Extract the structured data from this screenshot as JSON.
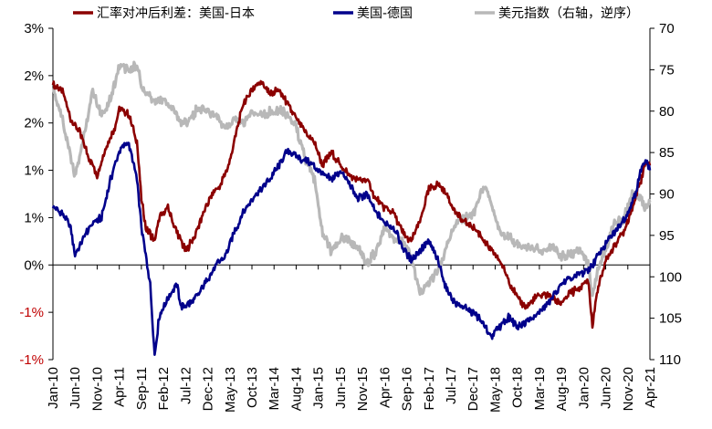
{
  "chart_data": {
    "type": "line",
    "legend_position": "top",
    "grid": false,
    "series": [
      {
        "name": "汇率对冲后利差：美国-日本",
        "color": "#8b0000",
        "axis": "left",
        "points": [
          [
            "2010-01",
            1.9
          ],
          [
            "2010-03",
            1.85
          ],
          [
            "2010-05",
            1.55
          ],
          [
            "2010-07",
            1.4
          ],
          [
            "2010-09",
            1.15
          ],
          [
            "2010-11",
            0.95
          ],
          [
            "2011-01",
            1.25
          ],
          [
            "2011-03",
            1.45
          ],
          [
            "2011-04",
            1.65
          ],
          [
            "2011-06",
            1.6
          ],
          [
            "2011-08",
            1.3
          ],
          [
            "2011-09",
            0.7
          ],
          [
            "2011-10",
            0.4
          ],
          [
            "2011-12",
            0.25
          ],
          [
            "2012-01",
            0.5
          ],
          [
            "2012-03",
            0.6
          ],
          [
            "2012-05",
            0.35
          ],
          [
            "2012-07",
            0.15
          ],
          [
            "2012-09",
            0.3
          ],
          [
            "2012-11",
            0.55
          ],
          [
            "2013-01",
            0.75
          ],
          [
            "2013-03",
            0.85
          ],
          [
            "2013-05",
            1.1
          ],
          [
            "2013-07",
            1.5
          ],
          [
            "2013-08",
            1.7
          ],
          [
            "2013-10",
            1.85
          ],
          [
            "2013-12",
            1.95
          ],
          [
            "2014-02",
            1.8
          ],
          [
            "2014-04",
            1.85
          ],
          [
            "2014-06",
            1.7
          ],
          [
            "2014-08",
            1.55
          ],
          [
            "2014-10",
            1.4
          ],
          [
            "2014-12",
            1.3
          ],
          [
            "2015-02",
            1.05
          ],
          [
            "2015-04",
            1.2
          ],
          [
            "2015-06",
            1.05
          ],
          [
            "2015-08",
            0.95
          ],
          [
            "2015-10",
            0.9
          ],
          [
            "2015-12",
            0.9
          ],
          [
            "2016-02",
            0.7
          ],
          [
            "2016-04",
            0.6
          ],
          [
            "2016-06",
            0.55
          ],
          [
            "2016-08",
            0.35
          ],
          [
            "2016-10",
            0.25
          ],
          [
            "2016-12",
            0.45
          ],
          [
            "2017-02",
            0.8
          ],
          [
            "2017-04",
            0.85
          ],
          [
            "2017-06",
            0.75
          ],
          [
            "2017-08",
            0.55
          ],
          [
            "2017-10",
            0.45
          ],
          [
            "2017-12",
            0.4
          ],
          [
            "2018-02",
            0.3
          ],
          [
            "2018-04",
            0.15
          ],
          [
            "2018-06",
            0.05
          ],
          [
            "2018-08",
            -0.15
          ],
          [
            "2018-10",
            -0.35
          ],
          [
            "2018-12",
            -0.45
          ],
          [
            "2019-02",
            -0.35
          ],
          [
            "2019-04",
            -0.3
          ],
          [
            "2019-06",
            -0.35
          ],
          [
            "2019-08",
            -0.4
          ],
          [
            "2019-10",
            -0.3
          ],
          [
            "2019-12",
            -0.25
          ],
          [
            "2020-02",
            -0.15
          ],
          [
            "2020-03",
            -0.65
          ],
          [
            "2020-04",
            -0.3
          ],
          [
            "2020-06",
            0.05
          ],
          [
            "2020-08",
            0.2
          ],
          [
            "2020-10",
            0.35
          ],
          [
            "2020-12",
            0.6
          ],
          [
            "2021-02",
            0.9
          ],
          [
            "2021-03",
            1.08
          ],
          [
            "2021-04",
            1.05
          ]
        ]
      },
      {
        "name": "美国-德国",
        "color": "#00008b",
        "axis": "left",
        "points": [
          [
            "2010-01",
            0.6
          ],
          [
            "2010-03",
            0.55
          ],
          [
            "2010-05",
            0.4
          ],
          [
            "2010-06",
            0.1
          ],
          [
            "2010-08",
            0.3
          ],
          [
            "2010-10",
            0.45
          ],
          [
            "2010-12",
            0.5
          ],
          [
            "2011-02",
            0.9
          ],
          [
            "2011-04",
            1.2
          ],
          [
            "2011-06",
            1.3
          ],
          [
            "2011-07",
            1.1
          ],
          [
            "2011-08",
            0.9
          ],
          [
            "2011-09",
            0.4
          ],
          [
            "2011-10",
            0.1
          ],
          [
            "2011-11",
            -0.2
          ],
          [
            "2011-12",
            -0.95
          ],
          [
            "2012-01",
            -0.55
          ],
          [
            "2012-03",
            -0.35
          ],
          [
            "2012-05",
            -0.2
          ],
          [
            "2012-06",
            -0.45
          ],
          [
            "2012-08",
            -0.4
          ],
          [
            "2012-10",
            -0.3
          ],
          [
            "2012-12",
            -0.15
          ],
          [
            "2013-02",
            0.0
          ],
          [
            "2013-04",
            0.1
          ],
          [
            "2013-06",
            0.35
          ],
          [
            "2013-08",
            0.55
          ],
          [
            "2013-10",
            0.7
          ],
          [
            "2013-12",
            0.8
          ],
          [
            "2014-02",
            0.9
          ],
          [
            "2014-04",
            1.05
          ],
          [
            "2014-06",
            1.2
          ],
          [
            "2014-08",
            1.15
          ],
          [
            "2014-10",
            1.1
          ],
          [
            "2014-12",
            1.05
          ],
          [
            "2015-02",
            0.95
          ],
          [
            "2015-04",
            0.9
          ],
          [
            "2015-06",
            1.0
          ],
          [
            "2015-08",
            0.85
          ],
          [
            "2015-10",
            0.7
          ],
          [
            "2015-12",
            0.75
          ],
          [
            "2016-02",
            0.55
          ],
          [
            "2016-04",
            0.45
          ],
          [
            "2016-06",
            0.4
          ],
          [
            "2016-08",
            0.2
          ],
          [
            "2016-10",
            0.05
          ],
          [
            "2016-12",
            0.15
          ],
          [
            "2017-02",
            0.25
          ],
          [
            "2017-04",
            0.05
          ],
          [
            "2017-06",
            -0.25
          ],
          [
            "2017-08",
            -0.4
          ],
          [
            "2017-10",
            -0.45
          ],
          [
            "2017-12",
            -0.5
          ],
          [
            "2018-02",
            -0.6
          ],
          [
            "2018-04",
            -0.75
          ],
          [
            "2018-06",
            -0.65
          ],
          [
            "2018-08",
            -0.55
          ],
          [
            "2018-10",
            -0.65
          ],
          [
            "2018-12",
            -0.6
          ],
          [
            "2019-02",
            -0.55
          ],
          [
            "2019-04",
            -0.45
          ],
          [
            "2019-06",
            -0.35
          ],
          [
            "2019-08",
            -0.2
          ],
          [
            "2019-10",
            -0.15
          ],
          [
            "2019-12",
            -0.1
          ],
          [
            "2020-02",
            -0.05
          ],
          [
            "2020-03",
            0.0
          ],
          [
            "2020-05",
            0.15
          ],
          [
            "2020-07",
            0.3
          ],
          [
            "2020-09",
            0.4
          ],
          [
            "2020-11",
            0.55
          ],
          [
            "2021-01",
            0.8
          ],
          [
            "2021-02",
            1.0
          ],
          [
            "2021-03",
            1.12
          ],
          [
            "2021-04",
            1.0
          ]
        ]
      },
      {
        "name": "美元指数（右轴，逆序）",
        "color": "#b8b8b8",
        "axis": "right",
        "points": [
          [
            "2010-01",
            77.5
          ],
          [
            "2010-03",
            80.5
          ],
          [
            "2010-05",
            85.5
          ],
          [
            "2010-06",
            88.0
          ],
          [
            "2010-08",
            83.0
          ],
          [
            "2010-10",
            77.5
          ],
          [
            "2010-12",
            80.5
          ],
          [
            "2011-02",
            78.5
          ],
          [
            "2011-04",
            74.5
          ],
          [
            "2011-06",
            74.8
          ],
          [
            "2011-08",
            74.5
          ],
          [
            "2011-09",
            77.0
          ],
          [
            "2011-11",
            78.5
          ],
          [
            "2011-12",
            79.0
          ],
          [
            "2012-02",
            78.5
          ],
          [
            "2012-04",
            79.5
          ],
          [
            "2012-06",
            81.5
          ],
          [
            "2012-08",
            81.0
          ],
          [
            "2012-10",
            79.5
          ],
          [
            "2012-12",
            80.0
          ],
          [
            "2013-02",
            80.5
          ],
          [
            "2013-04",
            82.0
          ],
          [
            "2013-06",
            81.0
          ],
          [
            "2013-08",
            81.5
          ],
          [
            "2013-10",
            80.0
          ],
          [
            "2013-12",
            80.5
          ],
          [
            "2014-02",
            80.2
          ],
          [
            "2014-04",
            79.8
          ],
          [
            "2014-06",
            80.5
          ],
          [
            "2014-08",
            82.0
          ],
          [
            "2014-10",
            85.5
          ],
          [
            "2014-12",
            88.0
          ],
          [
            "2015-02",
            94.5
          ],
          [
            "2015-04",
            97.0
          ],
          [
            "2015-06",
            95.5
          ],
          [
            "2015-08",
            95.5
          ],
          [
            "2015-10",
            96.5
          ],
          [
            "2015-12",
            98.5
          ],
          [
            "2016-02",
            97.0
          ],
          [
            "2016-04",
            94.0
          ],
          [
            "2016-06",
            95.5
          ],
          [
            "2016-08",
            95.5
          ],
          [
            "2016-10",
            97.5
          ],
          [
            "2016-12",
            102.0
          ],
          [
            "2017-02",
            100.5
          ],
          [
            "2017-04",
            99.5
          ],
          [
            "2017-06",
            96.5
          ],
          [
            "2017-08",
            93.5
          ],
          [
            "2017-10",
            93.0
          ],
          [
            "2017-12",
            92.5
          ],
          [
            "2018-02",
            89.5
          ],
          [
            "2018-03",
            89.0
          ],
          [
            "2018-04",
            91.0
          ],
          [
            "2018-06",
            94.5
          ],
          [
            "2018-08",
            95.0
          ],
          [
            "2018-10",
            96.0
          ],
          [
            "2018-12",
            96.5
          ],
          [
            "2019-02",
            96.5
          ],
          [
            "2019-04",
            97.0
          ],
          [
            "2019-06",
            96.5
          ],
          [
            "2019-08",
            97.5
          ],
          [
            "2019-10",
            97.5
          ],
          [
            "2019-12",
            96.5
          ],
          [
            "2020-02",
            98.5
          ],
          [
            "2020-03",
            102.5
          ],
          [
            "2020-04",
            99.5
          ],
          [
            "2020-06",
            96.5
          ],
          [
            "2020-08",
            93.5
          ],
          [
            "2020-10",
            93.2
          ],
          [
            "2020-12",
            90.0
          ],
          [
            "2021-02",
            90.5
          ],
          [
            "2021-03",
            92.0
          ],
          [
            "2021-04",
            91.0
          ]
        ]
      }
    ],
    "x_ticks": [
      "Jan-10",
      "Jun-10",
      "Nov-10",
      "Apr-11",
      "Sep-11",
      "Feb-12",
      "Jul-12",
      "Dec-12",
      "May-13",
      "Oct-13",
      "Mar-14",
      "Aug-14",
      "Jan-15",
      "Jun-15",
      "Nov-15",
      "Apr-16",
      "Sep-16",
      "Feb-17",
      "Jul-17",
      "Dec-17",
      "May-18",
      "Oct-18",
      "Mar-19",
      "Aug-19",
      "Jan-20",
      "Jun-20",
      "Nov-20",
      "Apr-21"
    ],
    "x_range": [
      "2010-01",
      "2021-04"
    ],
    "y_left": {
      "range": [
        -1.0,
        2.5
      ],
      "ticks": [
        {
          "value": 2.5,
          "label": "3%"
        },
        {
          "value": 2.0,
          "label": "2%"
        },
        {
          "value": 1.5,
          "label": "2%"
        },
        {
          "value": 1.0,
          "label": "1%"
        },
        {
          "value": 0.5,
          "label": "1%"
        },
        {
          "value": 0.0,
          "label": "0%"
        },
        {
          "value": -0.5,
          "label": "-1%"
        },
        {
          "value": -1.0,
          "label": "-1%"
        }
      ]
    },
    "y_right": {
      "range": [
        70,
        110
      ],
      "inverted": true,
      "ticks": [
        70,
        75,
        80,
        85,
        90,
        95,
        100,
        105,
        110
      ]
    }
  }
}
